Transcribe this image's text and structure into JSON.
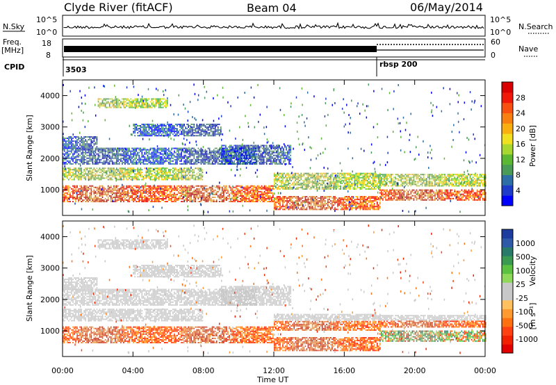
{
  "header": {
    "title": "Clyde River (fitACF)",
    "beam": "Beam 04",
    "date": "06/May/2014"
  },
  "status_panels": {
    "nsky_label": "N.Sky",
    "nsky_tick_top": "10^5",
    "nsky_tick_bottom": "10^0",
    "nsearch_label": "N.Search",
    "nsearch_tick_top": "10^5",
    "nsearch_tick_bottom": "10^0",
    "freq_label": "Freq.",
    "freq_unit": "[MHz]",
    "freq_tick_top": "18",
    "freq_tick_bottom": "8",
    "nave_label": "Nave",
    "nave_tick_top": "60",
    "nave_tick_bottom": "0",
    "cpid_label": "CPID",
    "cpid_segments": [
      {
        "label": "3503",
        "start_hour": 0
      },
      {
        "label": "rbsp 200",
        "start_hour": 18
      }
    ]
  },
  "chart_data": [
    {
      "type": "heatmap",
      "name": "power",
      "ylabel": "Slant Range [km]",
      "ylim": [
        180,
        4500
      ],
      "yticks": [
        "1000",
        "2000",
        "3000",
        "4000"
      ],
      "xlim": [
        0,
        24
      ],
      "colorbar": {
        "label": "Power [dB]",
        "ticks": [
          "4",
          "8",
          "12",
          "16",
          "20",
          "24",
          "28"
        ],
        "colors": [
          "#0000ff",
          "#1e3cc8",
          "#2e6ea6",
          "#4a9a58",
          "#5cb832",
          "#a8d830",
          "#f0e020",
          "#f8b010",
          "#f88010",
          "#f85010",
          "#f01808",
          "#d80000"
        ]
      }
    },
    {
      "type": "heatmap",
      "name": "velocity",
      "ylabel": "Slant Range [km]",
      "ylim": [
        180,
        4500
      ],
      "yticks": [
        "1000",
        "2000",
        "3000",
        "4000"
      ],
      "xlim": [
        0,
        24
      ],
      "xticks": [
        "00:00",
        "04:00",
        "08:00",
        "12:00",
        "16:00",
        "20:00",
        "00:00"
      ],
      "xlabel": "Time UT",
      "colorbar": {
        "label": "Velocity",
        "unit": "[m s⁻¹]",
        "ticks": [
          "1000",
          "500",
          "100",
          "25",
          "-25",
          "-100",
          "-500",
          "-1000"
        ],
        "colors": [
          "#1e3ca0",
          "#2e5aa8",
          "#2a7a6a",
          "#3a9a50",
          "#5cc040",
          "#8fd85a",
          "#c8c8c8",
          "#c8c8c8",
          "#ffc060",
          "#ff9a30",
          "#ff7010",
          "#ff4010",
          "#f02000",
          "#e00000"
        ]
      }
    }
  ]
}
